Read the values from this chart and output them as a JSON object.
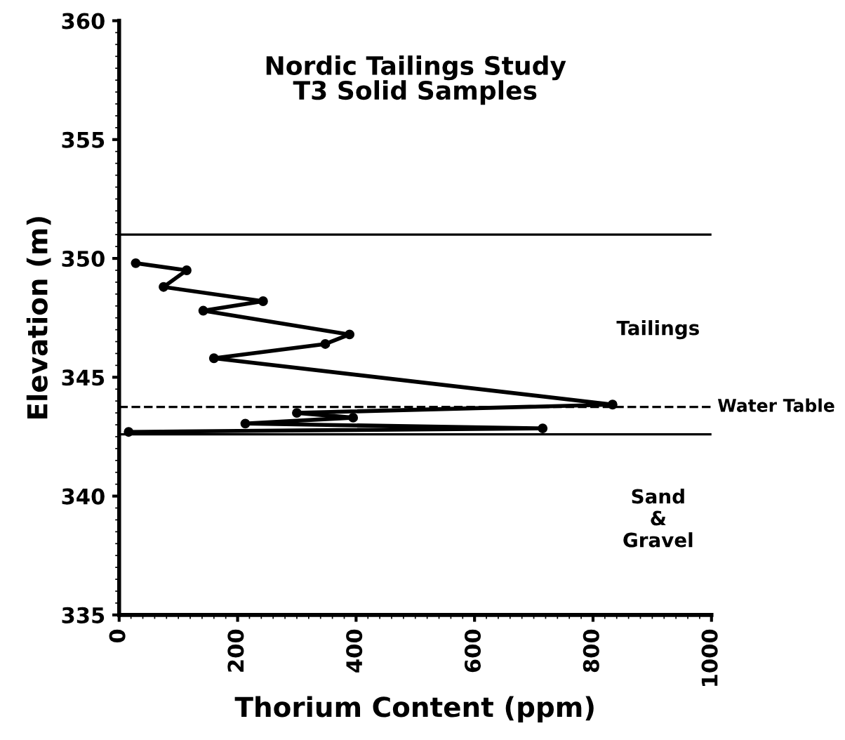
{
  "chart_data": {
    "type": "line",
    "title": "Nordic Tailings Study\nT3 Solid Samples",
    "xlabel": "Thorium Content (ppm)",
    "ylabel": "Elevation (m)",
    "x": [
      28,
      114,
      75,
      243,
      142,
      389,
      348,
      160,
      833,
      300,
      395,
      213,
      715,
      16
    ],
    "values": [
      349.8,
      349.5,
      348.8,
      348.2,
      347.8,
      346.8,
      346.4,
      345.8,
      343.85,
      343.5,
      343.3,
      343.05,
      342.85,
      342.7
    ],
    "color": "#000000",
    "marker": "circle",
    "line_style": "solid",
    "xlim": [
      0,
      1000
    ],
    "xticks": [
      0,
      200,
      400,
      600,
      800,
      1000
    ],
    "ylim": [
      335,
      360
    ],
    "yticks": [
      335,
      340,
      345,
      350,
      355,
      360
    ],
    "ref_lines": [
      {
        "axis": "y",
        "value": 351,
        "line_style": "solid"
      },
      {
        "axis": "y",
        "value": 343.75,
        "label": "Water Table",
        "line_style": "dashed"
      },
      {
        "axis": "y",
        "value": 342.6,
        "line_style": "solid"
      }
    ],
    "annotations": [
      "Tailings",
      "Sand\n&\nGravel"
    ],
    "grid": false,
    "legend": false
  }
}
